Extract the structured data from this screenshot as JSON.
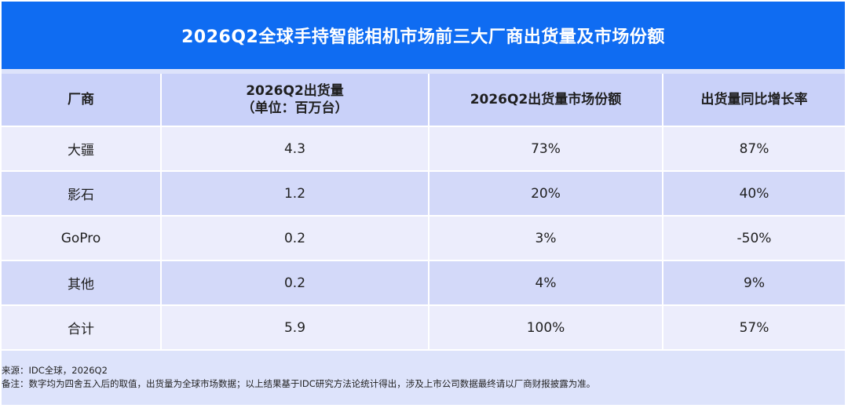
{
  "title": "2026Q2全球手持智能相机市场前三大厂商出货量及市场份额",
  "table": {
    "headers": [
      {
        "line1": "厂商",
        "line2": ""
      },
      {
        "line1": "2026Q2出货量",
        "line2": "（单位：百万台）"
      },
      {
        "line1": "2026Q2出货量市场份额",
        "line2": ""
      },
      {
        "line1": "出货量同比增长率",
        "line2": ""
      }
    ],
    "rows": [
      [
        "大疆",
        "4.3",
        "73%",
        "87%"
      ],
      [
        "影石",
        "1.2",
        "20%",
        "40%"
      ],
      [
        "GoPro",
        "0.2",
        "3%",
        "-50%"
      ],
      [
        "其他",
        "0.2",
        "4%",
        "9%"
      ],
      [
        "合计",
        "5.9",
        "100%",
        "57%"
      ]
    ]
  },
  "notes": {
    "source": "来源：IDC全球，2026Q2",
    "remark": "备注：数字均为四舍五入后的取值，出货量为全球市场数据；以上结果基于IDC研究方法论统计得出，涉及上市公司数据最终请以厂商财报披露为准。"
  },
  "colors": {
    "title_bg": "#0f6cf2",
    "header_bg": "#c9d1f9",
    "row_light": "#ecedfc",
    "row_dark": "#d3d9f9",
    "frame_bg": "#dde3fb"
  }
}
